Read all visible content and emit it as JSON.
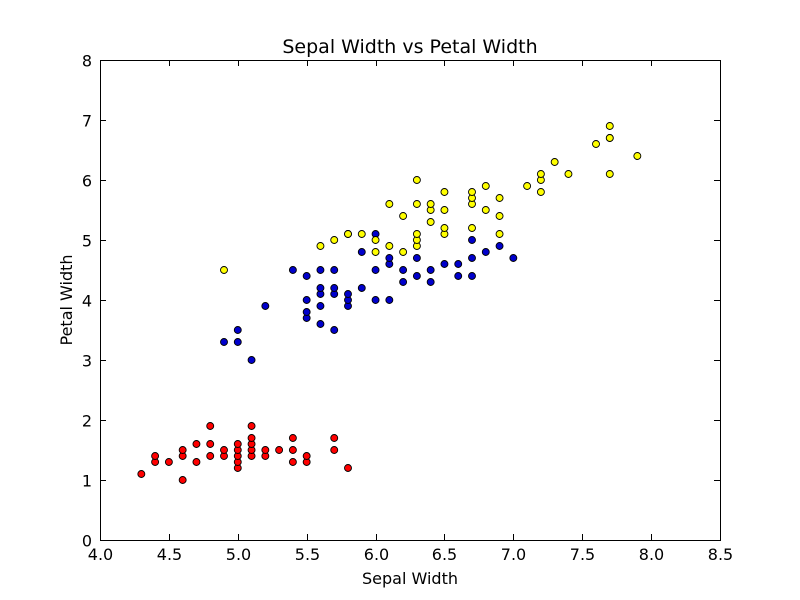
{
  "chart_data": {
    "type": "scatter",
    "title": "Sepal Width vs Petal Width",
    "xlabel": "Sepal Width",
    "ylabel": "Petal Width",
    "xlim": [
      4.0,
      8.5
    ],
    "ylim": [
      0,
      8
    ],
    "x_ticks": [
      "4.0",
      "4.5",
      "5.0",
      "5.5",
      "6.0",
      "6.5",
      "7.0",
      "7.5",
      "8.0",
      "8.5"
    ],
    "y_ticks": [
      "0",
      "1",
      "2",
      "3",
      "4",
      "5",
      "6",
      "7",
      "8"
    ],
    "grid": false,
    "legend": "none",
    "series": [
      {
        "color": "#ff0000",
        "points": [
          [
            4.3,
            1.1
          ],
          [
            4.4,
            1.3
          ],
          [
            4.4,
            1.4
          ],
          [
            4.5,
            1.3
          ],
          [
            4.6,
            1.0
          ],
          [
            4.6,
            1.4
          ],
          [
            4.6,
            1.5
          ],
          [
            4.7,
            1.3
          ],
          [
            4.7,
            1.6
          ],
          [
            4.8,
            1.4
          ],
          [
            4.8,
            1.6
          ],
          [
            4.8,
            1.9
          ],
          [
            4.9,
            1.4
          ],
          [
            4.9,
            1.5
          ],
          [
            5.0,
            1.2
          ],
          [
            5.0,
            1.3
          ],
          [
            5.0,
            1.4
          ],
          [
            5.0,
            1.5
          ],
          [
            5.0,
            1.6
          ],
          [
            5.1,
            1.4
          ],
          [
            5.1,
            1.5
          ],
          [
            5.1,
            1.6
          ],
          [
            5.1,
            1.7
          ],
          [
            5.1,
            1.9
          ],
          [
            5.2,
            1.4
          ],
          [
            5.2,
            1.5
          ],
          [
            5.3,
            1.5
          ],
          [
            5.4,
            1.3
          ],
          [
            5.4,
            1.5
          ],
          [
            5.4,
            1.7
          ],
          [
            5.5,
            1.3
          ],
          [
            5.5,
            1.4
          ],
          [
            5.7,
            1.5
          ],
          [
            5.7,
            1.7
          ],
          [
            5.8,
            1.2
          ]
        ]
      },
      {
        "color": "#0000cc",
        "points": [
          [
            4.9,
            3.3
          ],
          [
            5.0,
            3.3
          ],
          [
            5.0,
            3.5
          ],
          [
            5.1,
            3.0
          ],
          [
            5.2,
            3.9
          ],
          [
            5.4,
            4.5
          ],
          [
            5.5,
            3.7
          ],
          [
            5.5,
            3.8
          ],
          [
            5.5,
            4.0
          ],
          [
            5.5,
            4.4
          ],
          [
            5.6,
            3.6
          ],
          [
            5.6,
            3.9
          ],
          [
            5.6,
            4.1
          ],
          [
            5.6,
            4.2
          ],
          [
            5.6,
            4.5
          ],
          [
            5.7,
            3.5
          ],
          [
            5.7,
            4.1
          ],
          [
            5.7,
            4.2
          ],
          [
            5.7,
            4.5
          ],
          [
            5.8,
            3.9
          ],
          [
            5.8,
            4.0
          ],
          [
            5.8,
            4.1
          ],
          [
            5.9,
            4.2
          ],
          [
            5.9,
            4.8
          ],
          [
            6.0,
            4.0
          ],
          [
            6.0,
            4.5
          ],
          [
            6.0,
            5.1
          ],
          [
            6.1,
            4.0
          ],
          [
            6.1,
            4.6
          ],
          [
            6.1,
            4.7
          ],
          [
            6.2,
            4.3
          ],
          [
            6.2,
            4.5
          ],
          [
            6.3,
            4.4
          ],
          [
            6.3,
            4.7
          ],
          [
            6.4,
            4.3
          ],
          [
            6.4,
            4.5
          ],
          [
            6.5,
            4.6
          ],
          [
            6.6,
            4.4
          ],
          [
            6.6,
            4.6
          ],
          [
            6.7,
            4.4
          ],
          [
            6.7,
            4.7
          ],
          [
            6.7,
            5.0
          ],
          [
            6.8,
            4.8
          ],
          [
            6.9,
            4.9
          ],
          [
            7.0,
            4.7
          ]
        ]
      },
      {
        "color": "#ffff00",
        "points": [
          [
            4.9,
            4.5
          ],
          [
            5.6,
            4.9
          ],
          [
            5.7,
            5.0
          ],
          [
            5.8,
            5.1
          ],
          [
            5.8,
            5.1
          ],
          [
            5.9,
            5.1
          ],
          [
            6.0,
            4.8
          ],
          [
            6.0,
            5.0
          ],
          [
            6.1,
            4.9
          ],
          [
            6.1,
            5.6
          ],
          [
            6.2,
            4.8
          ],
          [
            6.2,
            5.4
          ],
          [
            6.3,
            4.9
          ],
          [
            6.3,
            5.0
          ],
          [
            6.3,
            5.1
          ],
          [
            6.3,
            5.6
          ],
          [
            6.3,
            6.0
          ],
          [
            6.4,
            5.3
          ],
          [
            6.4,
            5.5
          ],
          [
            6.4,
            5.6
          ],
          [
            6.5,
            5.1
          ],
          [
            6.5,
            5.2
          ],
          [
            6.5,
            5.5
          ],
          [
            6.5,
            5.8
          ],
          [
            6.7,
            5.2
          ],
          [
            6.7,
            5.6
          ],
          [
            6.7,
            5.7
          ],
          [
            6.7,
            5.8
          ],
          [
            6.8,
            5.5
          ],
          [
            6.8,
            5.9
          ],
          [
            6.9,
            5.1
          ],
          [
            6.9,
            5.4
          ],
          [
            6.9,
            5.7
          ],
          [
            7.1,
            5.9
          ],
          [
            7.2,
            5.8
          ],
          [
            7.2,
            6.0
          ],
          [
            7.2,
            6.1
          ],
          [
            7.3,
            6.3
          ],
          [
            7.4,
            6.1
          ],
          [
            7.6,
            6.6
          ],
          [
            7.7,
            6.1
          ],
          [
            7.7,
            6.7
          ],
          [
            7.7,
            6.7
          ],
          [
            7.7,
            6.9
          ],
          [
            7.9,
            6.4
          ]
        ]
      }
    ]
  }
}
